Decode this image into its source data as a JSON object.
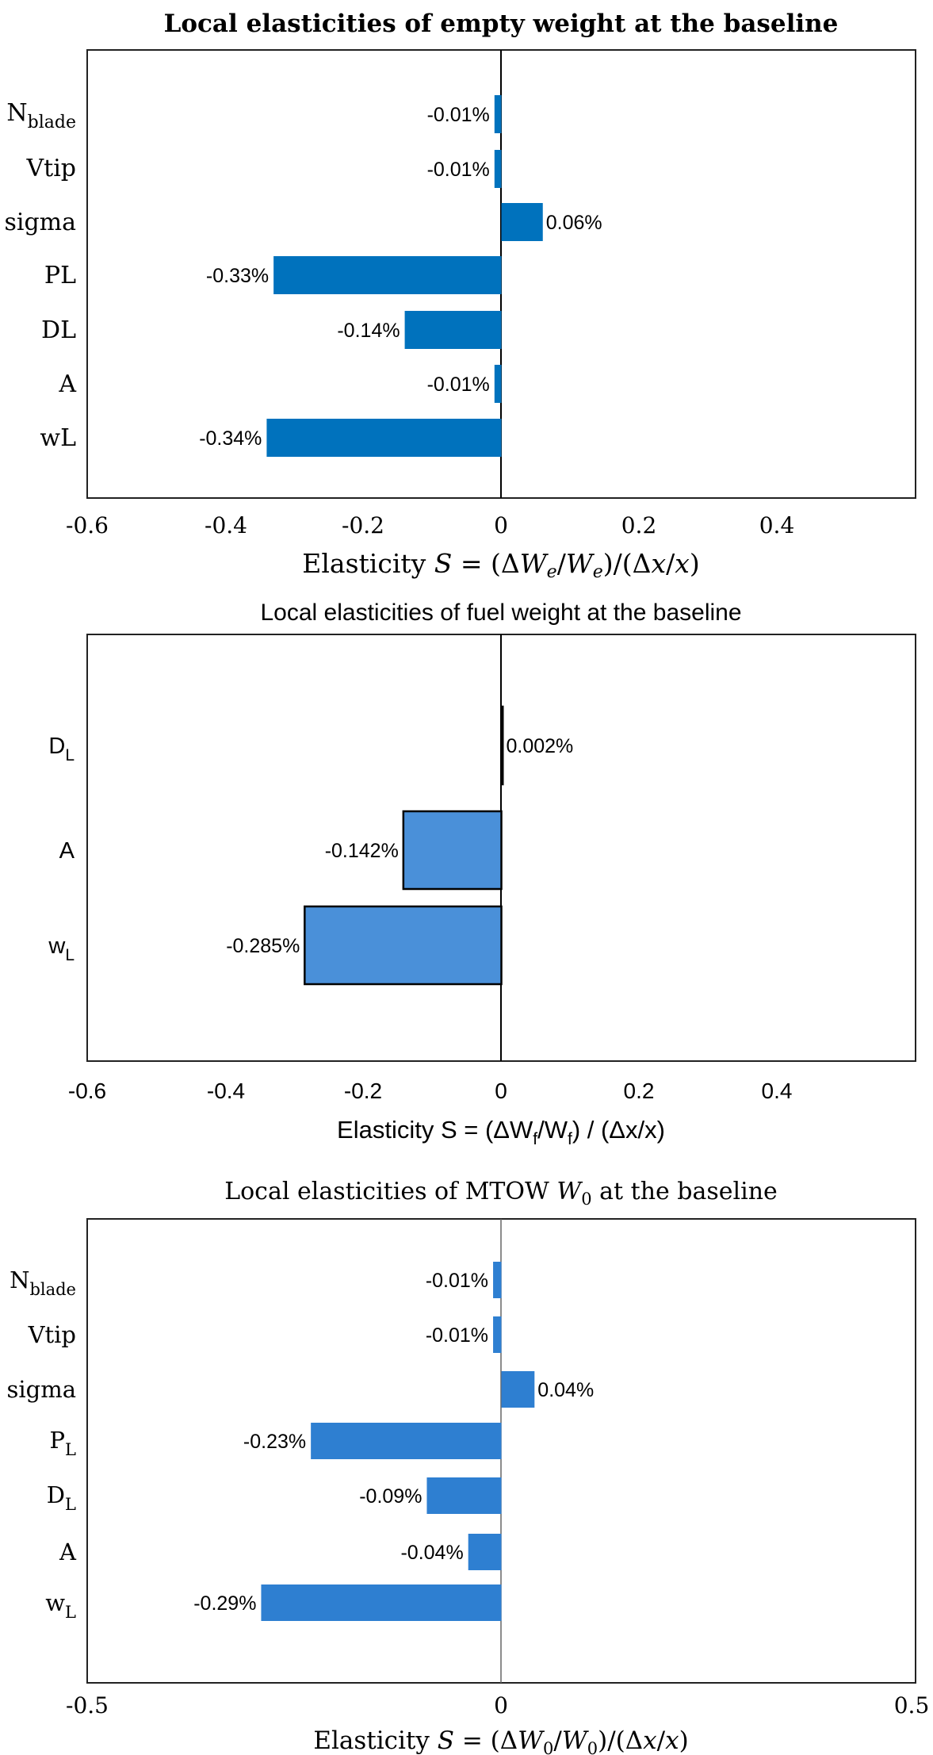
{
  "chart_data": [
    {
      "type": "bar",
      "orientation": "horizontal",
      "title": "Local elasticities of empty weight at the baseline",
      "xlabel": "Elasticity S = (ΔW_e/W_e)/(Δx/x)",
      "ylabel": "",
      "xlim": [
        -0.6,
        0.6
      ],
      "xticks": [
        -0.6,
        -0.4,
        -0.2,
        0,
        0.2,
        0.4
      ],
      "xtick_labels": [
        "-0.6",
        "-0.4",
        "-0.2",
        "0",
        "0.2",
        "0.4"
      ],
      "categories": [
        "N_blade",
        "Vtip",
        "sigma",
        "PL",
        "DL",
        "A",
        "wL"
      ],
      "category_labels": [
        {
          "main": "N",
          "sub": "blade"
        },
        {
          "main": "Vtip",
          "sub": ""
        },
        {
          "main": "sigma",
          "sub": ""
        },
        {
          "main": "PL",
          "sub": ""
        },
        {
          "main": "DL",
          "sub": ""
        },
        {
          "main": "A",
          "sub": ""
        },
        {
          "main": "wL",
          "sub": ""
        }
      ],
      "values": [
        -0.01,
        -0.01,
        0.06,
        -0.33,
        -0.14,
        -0.01,
        -0.34
      ],
      "data_labels": [
        "-0.01%",
        "-0.01%",
        "0.06%",
        "-0.33%",
        "-0.14%",
        "-0.01%",
        "-0.34%"
      ],
      "bar_color": "#0072BD",
      "grid": false
    },
    {
      "type": "bar",
      "orientation": "horizontal",
      "title": "Local elasticities of fuel weight at the baseline",
      "xlabel": "Elasticity  S = (ΔW_f/W_f) / (Δx/x)",
      "ylabel": "",
      "xlim": [
        -0.6,
        0.6
      ],
      "xticks": [
        -0.6,
        -0.4,
        -0.2,
        0,
        0.2,
        0.4
      ],
      "xtick_labels": [
        "-0.6",
        "-0.4",
        "-0.2",
        "0",
        "0.2",
        "0.4"
      ],
      "categories": [
        "D_L",
        "A",
        "w_L"
      ],
      "category_labels": [
        {
          "main": "D",
          "sub": "L"
        },
        {
          "main": "A",
          "sub": ""
        },
        {
          "main": "w",
          "sub": "L"
        }
      ],
      "values": [
        0.002,
        -0.142,
        -0.285
      ],
      "data_labels": [
        "0.002%",
        "-0.142%",
        "-0.285%"
      ],
      "bar_color": "#4A90D9",
      "grid": false
    },
    {
      "type": "bar",
      "orientation": "horizontal",
      "title": "Local elasticities of MTOW W_0 at the baseline",
      "xlabel": "Elasticity S = (ΔW_0/W_0)/(Δx/x)",
      "ylabel": "",
      "xlim": [
        -0.5,
        0.5
      ],
      "xticks": [
        -0.5,
        0,
        0.5
      ],
      "xtick_labels": [
        "-0.5",
        "0",
        "0.5"
      ],
      "categories": [
        "N_blade",
        "Vtip",
        "sigma",
        "P_L",
        "D_L",
        "A",
        "w_L"
      ],
      "category_labels": [
        {
          "main": "N",
          "sub": "blade"
        },
        {
          "main": "Vtip",
          "sub": ""
        },
        {
          "main": "sigma",
          "sub": ""
        },
        {
          "main": "P",
          "sub": "L"
        },
        {
          "main": "D",
          "sub": "L"
        },
        {
          "main": "A",
          "sub": ""
        },
        {
          "main": "w",
          "sub": "L"
        }
      ],
      "values": [
        -0.01,
        -0.01,
        0.04,
        -0.23,
        -0.09,
        -0.04,
        -0.29
      ],
      "data_labels": [
        "-0.01%",
        "-0.01%",
        "0.04%",
        "-0.23%",
        "-0.09%",
        "-0.04%",
        "-0.29%"
      ],
      "bar_color": "#2E7FD1",
      "grid": false
    }
  ]
}
